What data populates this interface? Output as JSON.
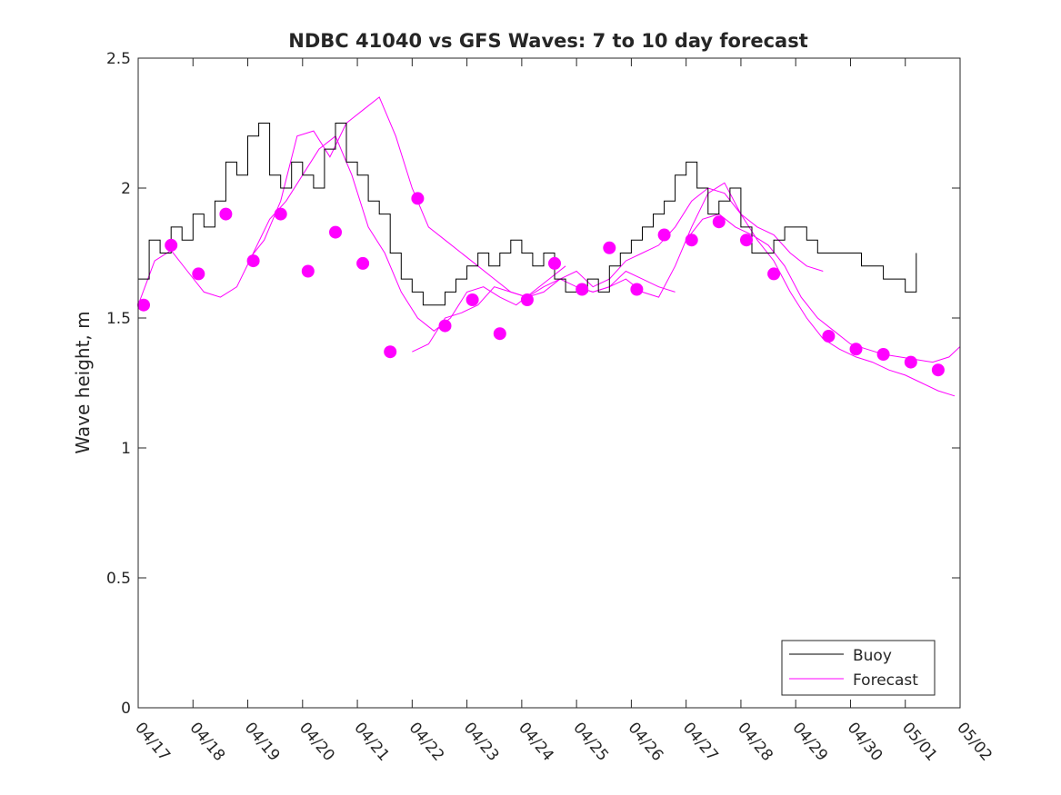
{
  "chart_data": {
    "type": "line",
    "title": "NDBC 41040 vs GFS Waves: 7 to 10 day forecast",
    "xlabel": "",
    "ylabel": "Wave height, m",
    "xlim": [
      "04/17",
      "05/02"
    ],
    "ylim": [
      0,
      2.5
    ],
    "x_tick_labels": [
      "04/17",
      "04/18",
      "04/19",
      "04/20",
      "04/21",
      "04/22",
      "04/23",
      "04/24",
      "04/25",
      "04/26",
      "04/27",
      "04/28",
      "04/29",
      "04/30",
      "05/01",
      "05/02"
    ],
    "y_tick_labels": [
      "0",
      "0.5",
      "1",
      "1.5",
      "2",
      "2.5"
    ],
    "grid": false,
    "legend_position": "bottom-right",
    "colors": {
      "buoy": "#000000",
      "forecast": "#ff00ff"
    },
    "legend": {
      "buoy_label": "Buoy",
      "forecast_label": "Forecast"
    },
    "series": [
      {
        "name": "Buoy",
        "x_unit": "days after 04/17 00:00",
        "x": [
          0.0,
          0.2,
          0.4,
          0.6,
          0.8,
          1.0,
          1.2,
          1.4,
          1.6,
          1.8,
          2.0,
          2.2,
          2.4,
          2.6,
          2.8,
          3.0,
          3.2,
          3.4,
          3.6,
          3.8,
          4.0,
          4.2,
          4.4,
          4.6,
          4.8,
          5.0,
          5.2,
          5.4,
          5.6,
          5.8,
          6.0,
          6.2,
          6.4,
          6.6,
          6.8,
          7.0,
          7.2,
          7.4,
          7.6,
          7.8,
          8.0,
          8.2,
          8.4,
          8.6,
          8.8,
          9.0,
          9.2,
          9.4,
          9.6,
          9.8,
          10.0,
          10.2,
          10.4,
          10.6,
          10.8,
          11.0,
          11.2,
          11.4,
          11.6,
          11.8,
          12.0,
          12.2,
          12.4,
          12.6,
          12.8,
          13.0,
          13.2,
          13.4,
          13.6,
          13.8,
          14.0,
          14.2
        ],
        "y": [
          1.65,
          1.8,
          1.75,
          1.85,
          1.8,
          1.9,
          1.85,
          1.95,
          2.1,
          2.05,
          2.2,
          2.25,
          2.05,
          2.0,
          2.1,
          2.05,
          2.0,
          2.15,
          2.25,
          2.1,
          2.05,
          1.95,
          1.9,
          1.75,
          1.65,
          1.6,
          1.55,
          1.55,
          1.6,
          1.65,
          1.7,
          1.75,
          1.7,
          1.75,
          1.8,
          1.75,
          1.7,
          1.75,
          1.65,
          1.6,
          1.6,
          1.65,
          1.6,
          1.7,
          1.75,
          1.8,
          1.85,
          1.9,
          1.95,
          2.05,
          2.1,
          2.0,
          1.9,
          1.95,
          2.0,
          1.85,
          1.75,
          1.75,
          1.8,
          1.85,
          1.85,
          1.8,
          1.75,
          1.75,
          1.75,
          1.75,
          1.7,
          1.7,
          1.65,
          1.65,
          1.6,
          1.75
        ]
      },
      {
        "name": "Forecast",
        "x_unit": "days after 04/17 00:00",
        "points": {
          "x": [
            0.1,
            0.6,
            1.1,
            1.6,
            2.1,
            2.6,
            3.1,
            3.6,
            4.1,
            4.6,
            5.1,
            5.6,
            6.1,
            6.6,
            7.1,
            7.6,
            8.1,
            8.6,
            9.1,
            9.6,
            10.1,
            10.6,
            11.1,
            11.6,
            12.6,
            13.1,
            13.6,
            14.1,
            14.6
          ],
          "y": [
            1.55,
            1.78,
            1.67,
            1.9,
            1.72,
            1.9,
            1.68,
            1.83,
            1.71,
            1.37,
            1.96,
            1.47,
            1.57,
            1.44,
            1.57,
            1.71,
            1.61,
            1.77,
            1.61,
            1.82,
            1.8,
            1.87,
            1.8,
            1.67,
            1.43,
            1.38,
            1.36,
            1.33,
            1.3
          ]
        },
        "runs": [
          {
            "x": [
              0.0,
              0.3,
              0.6,
              0.9,
              1.2,
              1.5,
              1.8,
              2.1,
              2.4,
              2.7,
              3.0,
              3.3,
              3.6,
              3.9,
              4.2,
              4.5,
              4.8,
              5.1,
              5.4,
              5.7,
              6.0,
              6.3,
              6.6,
              6.9,
              7.2,
              7.5,
              7.8
            ],
            "y": [
              1.55,
              1.72,
              1.76,
              1.68,
              1.6,
              1.58,
              1.62,
              1.75,
              1.88,
              1.95,
              2.05,
              2.15,
              2.2,
              2.05,
              1.85,
              1.75,
              1.6,
              1.5,
              1.45,
              1.5,
              1.6,
              1.62,
              1.58,
              1.55,
              1.6,
              1.65,
              1.7
            ]
          },
          {
            "x": [
              2.0,
              2.3,
              2.6,
              2.9,
              3.2,
              3.5,
              3.8,
              4.1,
              4.4,
              4.7,
              5.0,
              5.3,
              5.6,
              5.9,
              6.2,
              6.5,
              6.8,
              7.1,
              7.4,
              7.7,
              8.0,
              8.3,
              8.6,
              8.9,
              9.2,
              9.5,
              9.8
            ],
            "y": [
              1.72,
              1.8,
              1.95,
              2.2,
              2.22,
              2.12,
              2.25,
              2.3,
              2.35,
              2.2,
              2.0,
              1.85,
              1.8,
              1.75,
              1.7,
              1.65,
              1.6,
              1.58,
              1.6,
              1.65,
              1.62,
              1.6,
              1.62,
              1.68,
              1.65,
              1.62,
              1.6
            ]
          },
          {
            "x": [
              5.0,
              5.3,
              5.6,
              5.9,
              6.2,
              6.5,
              6.8,
              7.1,
              7.4,
              7.7,
              8.0,
              8.3,
              8.6,
              8.9,
              9.2,
              9.5,
              9.8,
              10.1,
              10.4,
              10.7,
              11.0,
              11.3,
              11.6,
              11.9,
              12.2,
              12.5
            ],
            "y": [
              1.37,
              1.4,
              1.5,
              1.52,
              1.55,
              1.62,
              1.6,
              1.58,
              1.62,
              1.65,
              1.68,
              1.62,
              1.65,
              1.72,
              1.75,
              1.78,
              1.85,
              1.95,
              2.0,
              1.98,
              1.9,
              1.85,
              1.82,
              1.75,
              1.7,
              1.68
            ]
          },
          {
            "x": [
              8.0,
              8.3,
              8.6,
              8.9,
              9.2,
              9.5,
              9.8,
              10.1,
              10.4,
              10.7,
              11.0,
              11.3,
              11.6,
              11.9,
              12.2,
              12.5,
              12.8,
              13.1,
              13.4,
              13.7,
              14.0,
              14.3,
              14.6,
              14.9
            ],
            "y": [
              1.62,
              1.6,
              1.62,
              1.65,
              1.6,
              1.58,
              1.7,
              1.85,
              1.98,
              2.02,
              1.9,
              1.8,
              1.72,
              1.6,
              1.5,
              1.42,
              1.38,
              1.35,
              1.33,
              1.3,
              1.28,
              1.25,
              1.22,
              1.2
            ]
          },
          {
            "x": [
              10.0,
              10.3,
              10.6,
              10.9,
              11.2,
              11.5,
              11.8,
              12.1,
              12.4,
              12.7,
              13.0,
              13.3,
              13.6,
              13.9,
              14.2,
              14.5,
              14.8,
              15.0
            ],
            "y": [
              1.8,
              1.88,
              1.9,
              1.85,
              1.82,
              1.78,
              1.7,
              1.58,
              1.5,
              1.45,
              1.4,
              1.38,
              1.36,
              1.35,
              1.34,
              1.33,
              1.35,
              1.39
            ]
          }
        ]
      }
    ]
  }
}
